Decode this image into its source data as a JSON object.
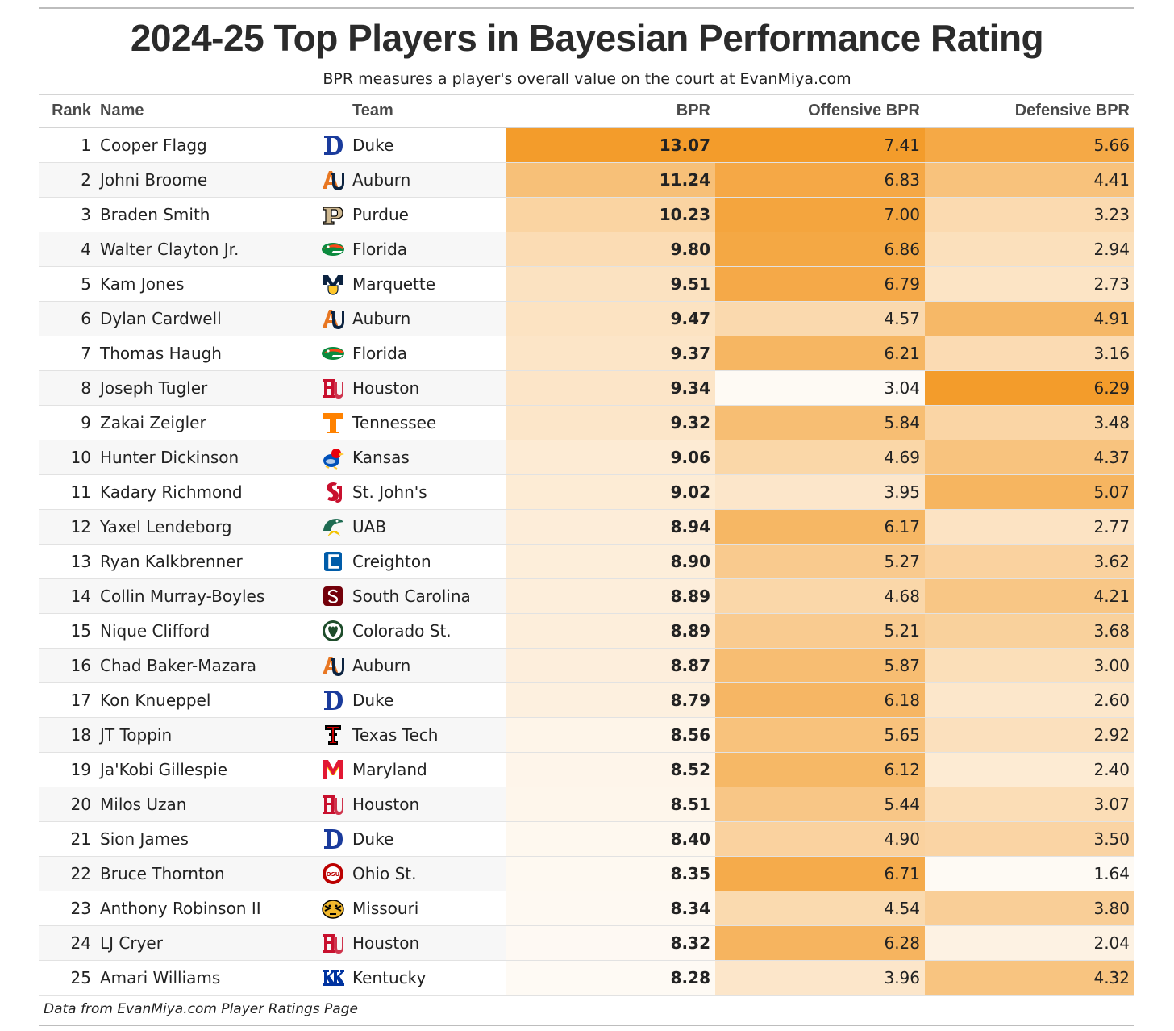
{
  "header": {
    "title": "2024-25 Top Players in Bayesian Performance Rating",
    "subtitle": "BPR measures a player's overall value on the court at EvanMiya.com"
  },
  "footer": {
    "source_note": "Data from EvanMiya.com Player Ratings Page"
  },
  "colors": {
    "accent": "#f39c2b",
    "light": "#ffffff",
    "rule": "#bdbdbd",
    "zebra": "#f7f7f7"
  },
  "chart_data": {
    "type": "table",
    "columns": [
      "Rank",
      "Name",
      "Team",
      "BPR",
      "Offensive BPR",
      "Defensive BPR"
    ],
    "rows": [
      {
        "rank": "1",
        "name": "Cooper Flagg",
        "team": "Duke",
        "logo": "duke-logo",
        "bpr": 13.07,
        "obpr": 7.41,
        "dbpr": 5.66
      },
      {
        "rank": "2",
        "name": "Johni Broome",
        "team": "Auburn",
        "logo": "auburn-logo",
        "bpr": 11.24,
        "obpr": 6.83,
        "dbpr": 4.41
      },
      {
        "rank": "3",
        "name": "Braden Smith",
        "team": "Purdue",
        "logo": "purdue-logo",
        "bpr": 10.23,
        "obpr": 7.0,
        "dbpr": 3.23
      },
      {
        "rank": "4",
        "name": "Walter Clayton Jr.",
        "team": "Florida",
        "logo": "florida-logo",
        "bpr": 9.8,
        "obpr": 6.86,
        "dbpr": 2.94
      },
      {
        "rank": "5",
        "name": "Kam Jones",
        "team": "Marquette",
        "logo": "marquette-logo",
        "bpr": 9.51,
        "obpr": 6.79,
        "dbpr": 2.73
      },
      {
        "rank": "6",
        "name": "Dylan Cardwell",
        "team": "Auburn",
        "logo": "auburn-logo",
        "bpr": 9.47,
        "obpr": 4.57,
        "dbpr": 4.91
      },
      {
        "rank": "7",
        "name": "Thomas Haugh",
        "team": "Florida",
        "logo": "florida-logo",
        "bpr": 9.37,
        "obpr": 6.21,
        "dbpr": 3.16
      },
      {
        "rank": "8",
        "name": "Joseph Tugler",
        "team": "Houston",
        "logo": "houston-logo",
        "bpr": 9.34,
        "obpr": 3.04,
        "dbpr": 6.29
      },
      {
        "rank": "9",
        "name": "Zakai Zeigler",
        "team": "Tennessee",
        "logo": "tennessee-logo",
        "bpr": 9.32,
        "obpr": 5.84,
        "dbpr": 3.48
      },
      {
        "rank": "10",
        "name": "Hunter Dickinson",
        "team": "Kansas",
        "logo": "kansas-logo",
        "bpr": 9.06,
        "obpr": 4.69,
        "dbpr": 4.37
      },
      {
        "rank": "11",
        "name": "Kadary Richmond",
        "team": "St. John's",
        "logo": "st-johns-logo",
        "bpr": 9.02,
        "obpr": 3.95,
        "dbpr": 5.07
      },
      {
        "rank": "12",
        "name": "Yaxel Lendeborg",
        "team": "UAB",
        "logo": "uab-logo",
        "bpr": 8.94,
        "obpr": 6.17,
        "dbpr": 2.77
      },
      {
        "rank": "13",
        "name": "Ryan Kalkbrenner",
        "team": "Creighton",
        "logo": "creighton-logo",
        "bpr": 8.9,
        "obpr": 5.27,
        "dbpr": 3.62
      },
      {
        "rank": "14",
        "name": "Collin Murray-Boyles",
        "team": "South Carolina",
        "logo": "south-carolina-logo",
        "bpr": 8.89,
        "obpr": 4.68,
        "dbpr": 4.21
      },
      {
        "rank": "15",
        "name": "Nique Clifford",
        "team": "Colorado St.",
        "logo": "colorado-st-logo",
        "bpr": 8.89,
        "obpr": 5.21,
        "dbpr": 3.68
      },
      {
        "rank": "16",
        "name": "Chad Baker-Mazara",
        "team": "Auburn",
        "logo": "auburn-logo",
        "bpr": 8.87,
        "obpr": 5.87,
        "dbpr": 3.0
      },
      {
        "rank": "17",
        "name": "Kon Knueppel",
        "team": "Duke",
        "logo": "duke-logo",
        "bpr": 8.79,
        "obpr": 6.18,
        "dbpr": 2.6
      },
      {
        "rank": "18",
        "name": "JT Toppin",
        "team": "Texas Tech",
        "logo": "texas-tech-logo",
        "bpr": 8.56,
        "obpr": 5.65,
        "dbpr": 2.92
      },
      {
        "rank": "19",
        "name": "Ja'Kobi Gillespie",
        "team": "Maryland",
        "logo": "maryland-logo",
        "bpr": 8.52,
        "obpr": 6.12,
        "dbpr": 2.4
      },
      {
        "rank": "20",
        "name": "Milos Uzan",
        "team": "Houston",
        "logo": "houston-logo",
        "bpr": 8.51,
        "obpr": 5.44,
        "dbpr": 3.07
      },
      {
        "rank": "21",
        "name": "Sion James",
        "team": "Duke",
        "logo": "duke-logo",
        "bpr": 8.4,
        "obpr": 4.9,
        "dbpr": 3.5
      },
      {
        "rank": "22",
        "name": "Bruce Thornton",
        "team": "Ohio St.",
        "logo": "ohio-st-logo",
        "bpr": 8.35,
        "obpr": 6.71,
        "dbpr": 1.64
      },
      {
        "rank": "23",
        "name": "Anthony Robinson II",
        "team": "Missouri",
        "logo": "missouri-logo",
        "bpr": 8.34,
        "obpr": 4.54,
        "dbpr": 3.8
      },
      {
        "rank": "24",
        "name": "LJ Cryer",
        "team": "Houston",
        "logo": "houston-logo",
        "bpr": 8.32,
        "obpr": 6.28,
        "dbpr": 2.04
      },
      {
        "rank": "25",
        "name": "Amari Williams",
        "team": "Kentucky",
        "logo": "kentucky-logo",
        "bpr": 8.28,
        "obpr": 3.96,
        "dbpr": 4.32
      }
    ]
  }
}
